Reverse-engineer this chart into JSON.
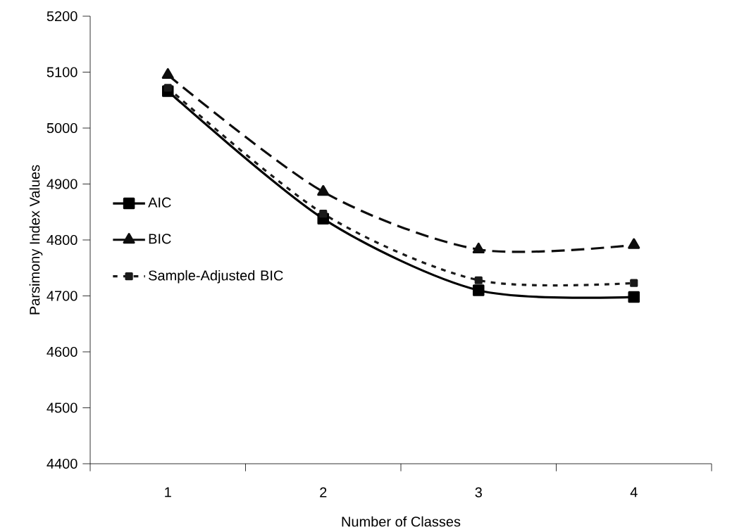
{
  "chart_data": {
    "type": "line",
    "xlabel": "Number of Classes",
    "ylabel": "Parsimony Index Values",
    "categories": [
      "1",
      "2",
      "3",
      "4"
    ],
    "series": [
      {
        "name": "AIC",
        "color": "#000000",
        "values": [
          5066,
          4838,
          4710,
          4698
        ],
        "marker": "square",
        "line_style": "solid"
      },
      {
        "name": "BIC",
        "color": "#0d0d0d",
        "values": [
          5095,
          4886,
          4783,
          4791
        ],
        "marker": "triangle",
        "line_style": "dashed"
      },
      {
        "name": "Sample-Adjusted BIC",
        "color": "#1a1a1a",
        "values": [
          5072,
          4847,
          4728,
          4723
        ],
        "marker": "square",
        "line_style": "dotted"
      }
    ],
    "ylim": [
      4400,
      5200
    ],
    "yticks": [
      4400,
      4500,
      4600,
      4700,
      4800,
      4900,
      5000,
      5100,
      5200
    ],
    "grid": false,
    "legend": "left"
  }
}
